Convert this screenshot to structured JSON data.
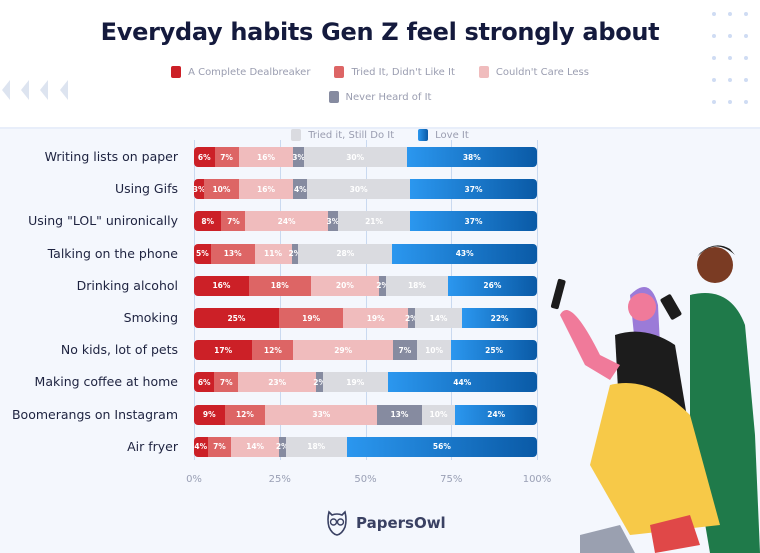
{
  "chart_data": {
    "type": "bar",
    "orientation": "horizontal",
    "stacked": true,
    "title": "Everyday habits Gen Z feel strongly about",
    "xlim": [
      0,
      100
    ],
    "xticks": [
      "0%",
      "25%",
      "50%",
      "75%",
      "100%"
    ],
    "grid": true,
    "legend_position": "top",
    "categories": [
      "Writing lists on paper",
      "Using Gifs",
      "Using \"LOL\" unironically",
      "Talking on the phone",
      "Drinking alcohol",
      "Smoking",
      "No kids, lot of pets",
      "Making coffee at home",
      "Boomerangs on Instagram",
      "Air fryer"
    ],
    "series": [
      {
        "name": "A Complete Dealbreaker",
        "color": "#cc2027",
        "values": [
          6,
          3,
          8,
          5,
          16,
          25,
          17,
          6,
          9,
          4
        ]
      },
      {
        "name": "Tried It, Didn't Like It",
        "color": "#dd6565",
        "values": [
          7,
          10,
          7,
          13,
          18,
          19,
          12,
          7,
          12,
          7
        ]
      },
      {
        "name": "Couldn't Care Less",
        "color": "#f0bcbd",
        "values": [
          16,
          16,
          24,
          11,
          20,
          19,
          29,
          23,
          33,
          14
        ]
      },
      {
        "name": "Never Heard of It",
        "color": "#868ba0",
        "values": [
          3,
          4,
          3,
          2,
          2,
          2,
          7,
          2,
          13,
          2
        ]
      },
      {
        "name": "Tried it, Still Do It",
        "color": "#dadbe0",
        "values": [
          30,
          30,
          21,
          28,
          18,
          14,
          10,
          19,
          10,
          18
        ]
      },
      {
        "name": "Love It",
        "color": "#1a78d4",
        "values": [
          38,
          37,
          37,
          43,
          26,
          22,
          25,
          44,
          24,
          56
        ]
      }
    ]
  },
  "brand": {
    "name": "PapersOwl"
  }
}
